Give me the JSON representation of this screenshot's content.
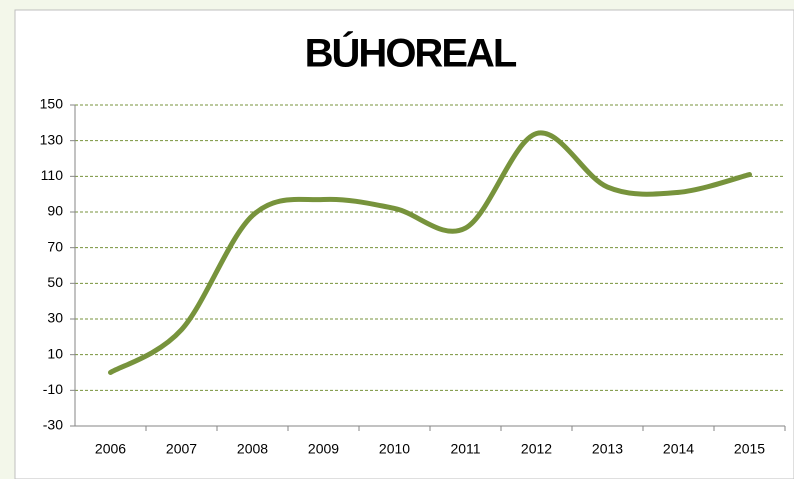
{
  "chart_data": {
    "type": "line",
    "title": "BÚHOREAL",
    "categories": [
      "2006",
      "2007",
      "2008",
      "2009",
      "2010",
      "2011",
      "2012",
      "2013",
      "2014",
      "2015"
    ],
    "series": [
      {
        "name": "BÚHOREAL",
        "color": "#77933c",
        "values": [
          0,
          24,
          88,
          97,
          92,
          81,
          134,
          104,
          101,
          111
        ]
      }
    ],
    "ylim": [
      -30,
      150
    ],
    "yticks": [
      -30,
      -10,
      10,
      30,
      50,
      70,
      90,
      110,
      130,
      150
    ],
    "grid": true,
    "smooth": true
  }
}
